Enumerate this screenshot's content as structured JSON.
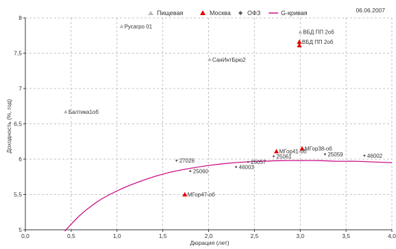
{
  "date_label": "06.06.2007",
  "colors": {
    "food": "#b8b8b8",
    "moscow": "#e00000",
    "ofz": "#555555",
    "gcurve": "#cc1188",
    "grid": "#b0b0b0",
    "axis": "#333333"
  },
  "chart_data": {
    "type": "scatter",
    "title": "",
    "xlabel": "Дюрация (лет)",
    "ylabel": "Доходность (%, год)",
    "xlim": [
      0,
      4
    ],
    "ylim": [
      5,
      8
    ],
    "x_ticks": [
      "0,0",
      "0,5",
      "1,0",
      "1,5",
      "2,0",
      "2,5",
      "3,0",
      "3,5",
      "4,0"
    ],
    "y_ticks": [
      "5",
      "5,5",
      "6",
      "6,5",
      "7",
      "7,5",
      "8"
    ],
    "grid": true,
    "legend_position": "top-center",
    "series": [
      {
        "name": "Пищевая",
        "marker": "triangle",
        "points": [
          {
            "label": "Русагро 01",
            "x": 1.05,
            "y": 7.88
          },
          {
            "label": "Балтика1об",
            "x": 0.44,
            "y": 6.67
          },
          {
            "label": "СанИнтБрю2",
            "x": 2.01,
            "y": 7.41
          },
          {
            "label": "ВБД ПП 2об",
            "x": 3.0,
            "y": 7.8
          }
        ]
      },
      {
        "name": "Москва",
        "marker": "triangle",
        "points": [
          {
            "label": "ВБД ПП 2об",
            "x": 2.99,
            "y": 7.66
          },
          {
            "label": "",
            "x": 2.99,
            "y": 7.61
          },
          {
            "label": "МГор47-об",
            "x": 1.74,
            "y": 5.5
          },
          {
            "label": "МГор41-об",
            "x": 2.74,
            "y": 6.11
          },
          {
            "label": "МГор38-об",
            "x": 3.02,
            "y": 6.15
          }
        ]
      },
      {
        "name": "ОФЗ",
        "marker": "diamond",
        "points": [
          {
            "label": "27026",
            "x": 1.65,
            "y": 5.98
          },
          {
            "label": "25060",
            "x": 1.8,
            "y": 5.83
          },
          {
            "label": "25057",
            "x": 2.43,
            "y": 5.96
          },
          {
            "label": "46003",
            "x": 2.3,
            "y": 5.89
          },
          {
            "label": "25061",
            "x": 2.71,
            "y": 6.04
          },
          {
            "label": "25059",
            "x": 3.27,
            "y": 6.07
          },
          {
            "label": "46002",
            "x": 3.7,
            "y": 6.05
          }
        ]
      },
      {
        "name": "G-кривая",
        "type": "line",
        "x": [
          0.43,
          0.6,
          0.8,
          1.0,
          1.2,
          1.4,
          1.6,
          1.8,
          2.0,
          2.2,
          2.4,
          2.6,
          2.8,
          3.0,
          3.2,
          3.4,
          3.6,
          3.8,
          4.0
        ],
        "y": [
          4.98,
          5.21,
          5.41,
          5.55,
          5.66,
          5.75,
          5.82,
          5.87,
          5.91,
          5.94,
          5.96,
          5.97,
          5.98,
          5.98,
          5.98,
          5.97,
          5.97,
          5.96,
          5.95
        ]
      }
    ]
  }
}
